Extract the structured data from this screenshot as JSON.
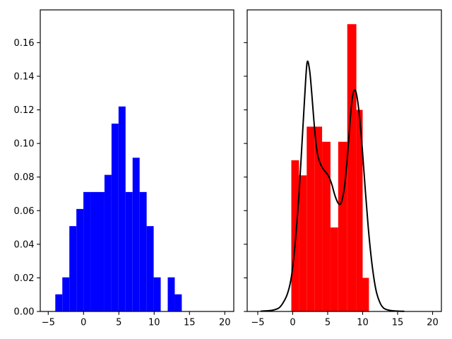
{
  "figure": {
    "background": "#ffffff",
    "title": ""
  },
  "chart_data": [
    {
      "id": "left-histogram",
      "type": "bar",
      "subtype": "histogram",
      "title": "",
      "xlabel": "",
      "ylabel": "",
      "bar_color": "#0000ff",
      "bin_start": -4.0,
      "bin_width": 0.995,
      "bar_heights": [
        0.0102,
        0.0203,
        0.0508,
        0.061,
        0.0711,
        0.0711,
        0.0711,
        0.0813,
        0.1118,
        0.122,
        0.0711,
        0.0915,
        0.0711,
        0.0508,
        0.0203,
        0.0,
        0.0203,
        0.0102
      ],
      "xlim": [
        -6.13,
        21.27
      ],
      "ylim": [
        0,
        0.1795
      ],
      "xticks": [
        -5,
        0,
        5,
        10,
        15,
        20
      ],
      "xtick_labels": [
        "−5",
        "0",
        "5",
        "10",
        "15",
        "20"
      ],
      "yticks": [
        0,
        0.02,
        0.04,
        0.06,
        0.08,
        0.1,
        0.12,
        0.14,
        0.16
      ],
      "ytick_labels": [
        "0.00",
        "0.02",
        "0.04",
        "0.06",
        "0.08",
        "0.10",
        "0.12",
        "0.14",
        "0.16"
      ],
      "show_ytick_labels": true,
      "grid": false,
      "legend": null
    },
    {
      "id": "right-histogram-with-kde",
      "type": "bar",
      "subtype": "histogram+kde",
      "title": "",
      "xlabel": "",
      "ylabel": "",
      "bar_color": "#ff0000",
      "bin_edges": [
        -0.2,
        0.9,
        2.0,
        3.1,
        4.2,
        5.4,
        6.5,
        7.8,
        9.1,
        10.0,
        10.9
      ],
      "bar_heights": [
        0.09,
        0.081,
        0.11,
        0.11,
        0.101,
        0.05,
        0.101,
        0.171,
        0.12,
        0.02
      ],
      "curve_color": "#000000",
      "curve_points": [
        [
          -4.5,
          0.0002
        ],
        [
          -3.6,
          0.0004
        ],
        [
          -2.8,
          0.0008
        ],
        [
          -2.0,
          0.002
        ],
        [
          -1.4,
          0.005
        ],
        [
          -0.8,
          0.01
        ],
        [
          -0.3,
          0.018
        ],
        [
          0.1,
          0.03
        ],
        [
          0.5,
          0.048
        ],
        [
          0.9,
          0.07
        ],
        [
          1.3,
          0.098
        ],
        [
          1.7,
          0.127
        ],
        [
          2.05,
          0.148
        ],
        [
          2.4,
          0.144
        ],
        [
          2.7,
          0.131
        ],
        [
          3.0,
          0.115
        ],
        [
          3.3,
          0.101
        ],
        [
          3.6,
          0.0925
        ],
        [
          4.0,
          0.0875
        ],
        [
          4.4,
          0.0845
        ],
        [
          4.8,
          0.0825
        ],
        [
          5.2,
          0.08
        ],
        [
          5.6,
          0.0755
        ],
        [
          6.0,
          0.0695
        ],
        [
          6.4,
          0.0652
        ],
        [
          6.7,
          0.0637
        ],
        [
          7.0,
          0.0655
        ],
        [
          7.4,
          0.074
        ],
        [
          7.8,
          0.091
        ],
        [
          8.2,
          0.113
        ],
        [
          8.5,
          0.1265
        ],
        [
          8.86,
          0.132
        ],
        [
          9.2,
          0.1275
        ],
        [
          9.6,
          0.114
        ],
        [
          10.0,
          0.094
        ],
        [
          10.4,
          0.071
        ],
        [
          10.8,
          0.05
        ],
        [
          11.2,
          0.033
        ],
        [
          11.6,
          0.02
        ],
        [
          12.0,
          0.011
        ],
        [
          12.5,
          0.005
        ],
        [
          13.0,
          0.002
        ],
        [
          13.6,
          0.0009
        ],
        [
          14.3,
          0.0004
        ],
        [
          15.0,
          0.0002
        ],
        [
          15.9,
          0.0001
        ]
      ],
      "xlim": [
        -6.51,
        21.26
      ],
      "ylim": [
        0,
        0.1795
      ],
      "xticks": [
        -5,
        0,
        5,
        10,
        15,
        20
      ],
      "xtick_labels": [
        "−5",
        "0",
        "5",
        "10",
        "15",
        "20"
      ],
      "yticks": [
        0,
        0.02,
        0.04,
        0.06,
        0.08,
        0.1,
        0.12,
        0.14,
        0.16
      ],
      "ytick_labels": [],
      "show_ytick_labels": false,
      "grid": false,
      "legend": null
    }
  ]
}
